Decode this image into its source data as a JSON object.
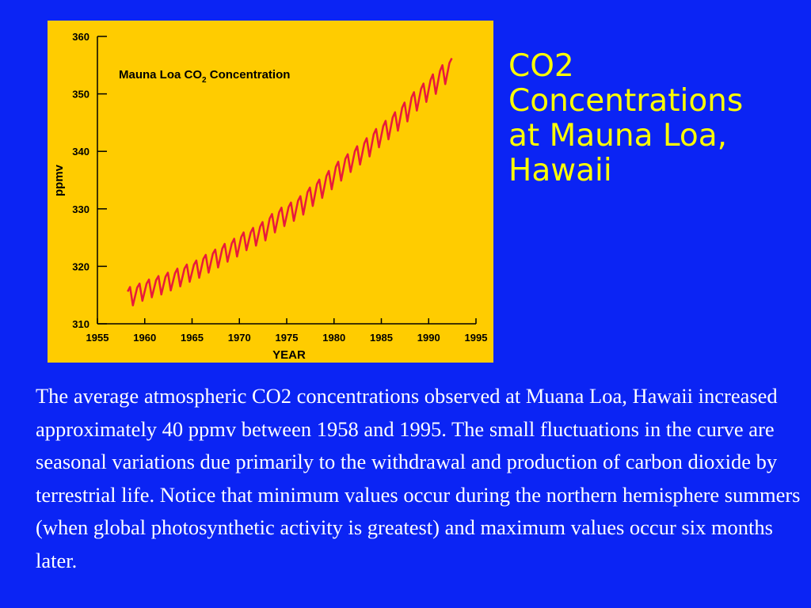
{
  "slide": {
    "title": "CO2\nConcentrations\nat Mauna Loa,\nHawaii",
    "body": "The average atmospheric CO2 concentrations observed at Muana Loa, Hawaii increased approximately 40 ppmv between 1958 and 1995. The small fluctuations in the curve are seasonal variations due primarily to the withdrawal and production of carbon dioxide by terrestrial life. Notice that minimum values occur during the northern hemisphere summers (when global photosynthetic activity is greatest) and maximum values occur six months later."
  },
  "colors": {
    "background": "#0b24f4",
    "chart_background": "#ffcc00",
    "series": "#e8193c",
    "title_text": "#ffff00",
    "body_text": "#ffffff"
  },
  "chart_data": {
    "type": "line",
    "title_main": "Mauna Loa CO",
    "title_sub": "2",
    "title_end": " Concentration",
    "xlabel": "YEAR",
    "ylabel": "ppmv",
    "xlim": [
      1955,
      1995
    ],
    "ylim": [
      310,
      360
    ],
    "xticks": [
      "1955",
      "1960",
      "1965",
      "1970",
      "1975",
      "1980",
      "1985",
      "1990",
      "1995"
    ],
    "yticks": [
      "310",
      "320",
      "330",
      "340",
      "350",
      "360"
    ],
    "grid": false,
    "legend": "none",
    "series": [
      {
        "x": [
          1958.2,
          1958.45,
          1958.75,
          1959.2,
          1959.45,
          1959.75,
          1960.2,
          1960.45,
          1960.75,
          1961.2,
          1961.45,
          1961.75,
          1962.2,
          1962.45,
          1962.75,
          1963.2,
          1963.45,
          1963.75,
          1964.2,
          1964.45,
          1964.75,
          1965.2,
          1965.45,
          1965.75,
          1966.2,
          1966.45,
          1966.75,
          1967.2,
          1967.45,
          1967.75,
          1968.2,
          1968.45,
          1968.75,
          1969.2,
          1969.45,
          1969.75,
          1970.2,
          1970.45,
          1970.75,
          1971.2,
          1971.45,
          1971.75,
          1972.2,
          1972.45,
          1972.75,
          1973.2,
          1973.45,
          1973.75,
          1974.2,
          1974.45,
          1974.75,
          1975.2,
          1975.45,
          1975.75,
          1976.2,
          1976.45,
          1976.75,
          1977.2,
          1977.45,
          1977.75,
          1978.2,
          1978.45,
          1978.75,
          1979.2,
          1979.45,
          1979.75,
          1980.2,
          1980.45,
          1980.75,
          1981.2,
          1981.45,
          1981.75,
          1982.2,
          1982.45,
          1982.75,
          1983.2,
          1983.45,
          1983.75,
          1984.2,
          1984.45,
          1984.75,
          1985.2,
          1985.45,
          1985.75,
          1986.2,
          1986.45,
          1986.75,
          1987.2,
          1987.45,
          1987.75,
          1988.2,
          1988.45,
          1988.75,
          1989.2,
          1989.45,
          1989.75,
          1990.2,
          1990.45,
          1990.75,
          1991.2,
          1991.45,
          1991.75,
          1992.2,
          1992.45
        ],
        "y": [
          315.6,
          316.4,
          313.2,
          316.3,
          317.0,
          314.0,
          317.0,
          317.7,
          314.6,
          317.6,
          318.3,
          315.1,
          318.2,
          318.9,
          315.8,
          318.8,
          319.6,
          316.5,
          319.6,
          320.3,
          317.3,
          320.3,
          321.0,
          318.0,
          321.3,
          322.0,
          318.9,
          322.2,
          322.9,
          319.8,
          323.1,
          323.9,
          320.8,
          324.0,
          324.8,
          321.7,
          325.1,
          325.9,
          322.8,
          325.9,
          326.7,
          323.6,
          326.9,
          327.7,
          324.5,
          328.3,
          329.1,
          325.9,
          329.4,
          330.2,
          327.0,
          330.3,
          331.1,
          327.9,
          331.4,
          332.2,
          329.0,
          332.9,
          333.7,
          330.5,
          334.3,
          335.1,
          331.9,
          335.7,
          336.6,
          333.4,
          337.3,
          338.2,
          334.9,
          338.7,
          339.5,
          336.4,
          340.0,
          340.9,
          337.7,
          341.4,
          342.3,
          339.1,
          343.0,
          343.9,
          340.7,
          344.4,
          345.3,
          342.1,
          345.9,
          346.8,
          343.6,
          347.6,
          348.5,
          345.2,
          349.4,
          350.3,
          347.1,
          350.9,
          351.8,
          348.6,
          352.4,
          353.4,
          350.0,
          354.0,
          355.0,
          351.7,
          355.4,
          356.2
        ]
      }
    ]
  }
}
